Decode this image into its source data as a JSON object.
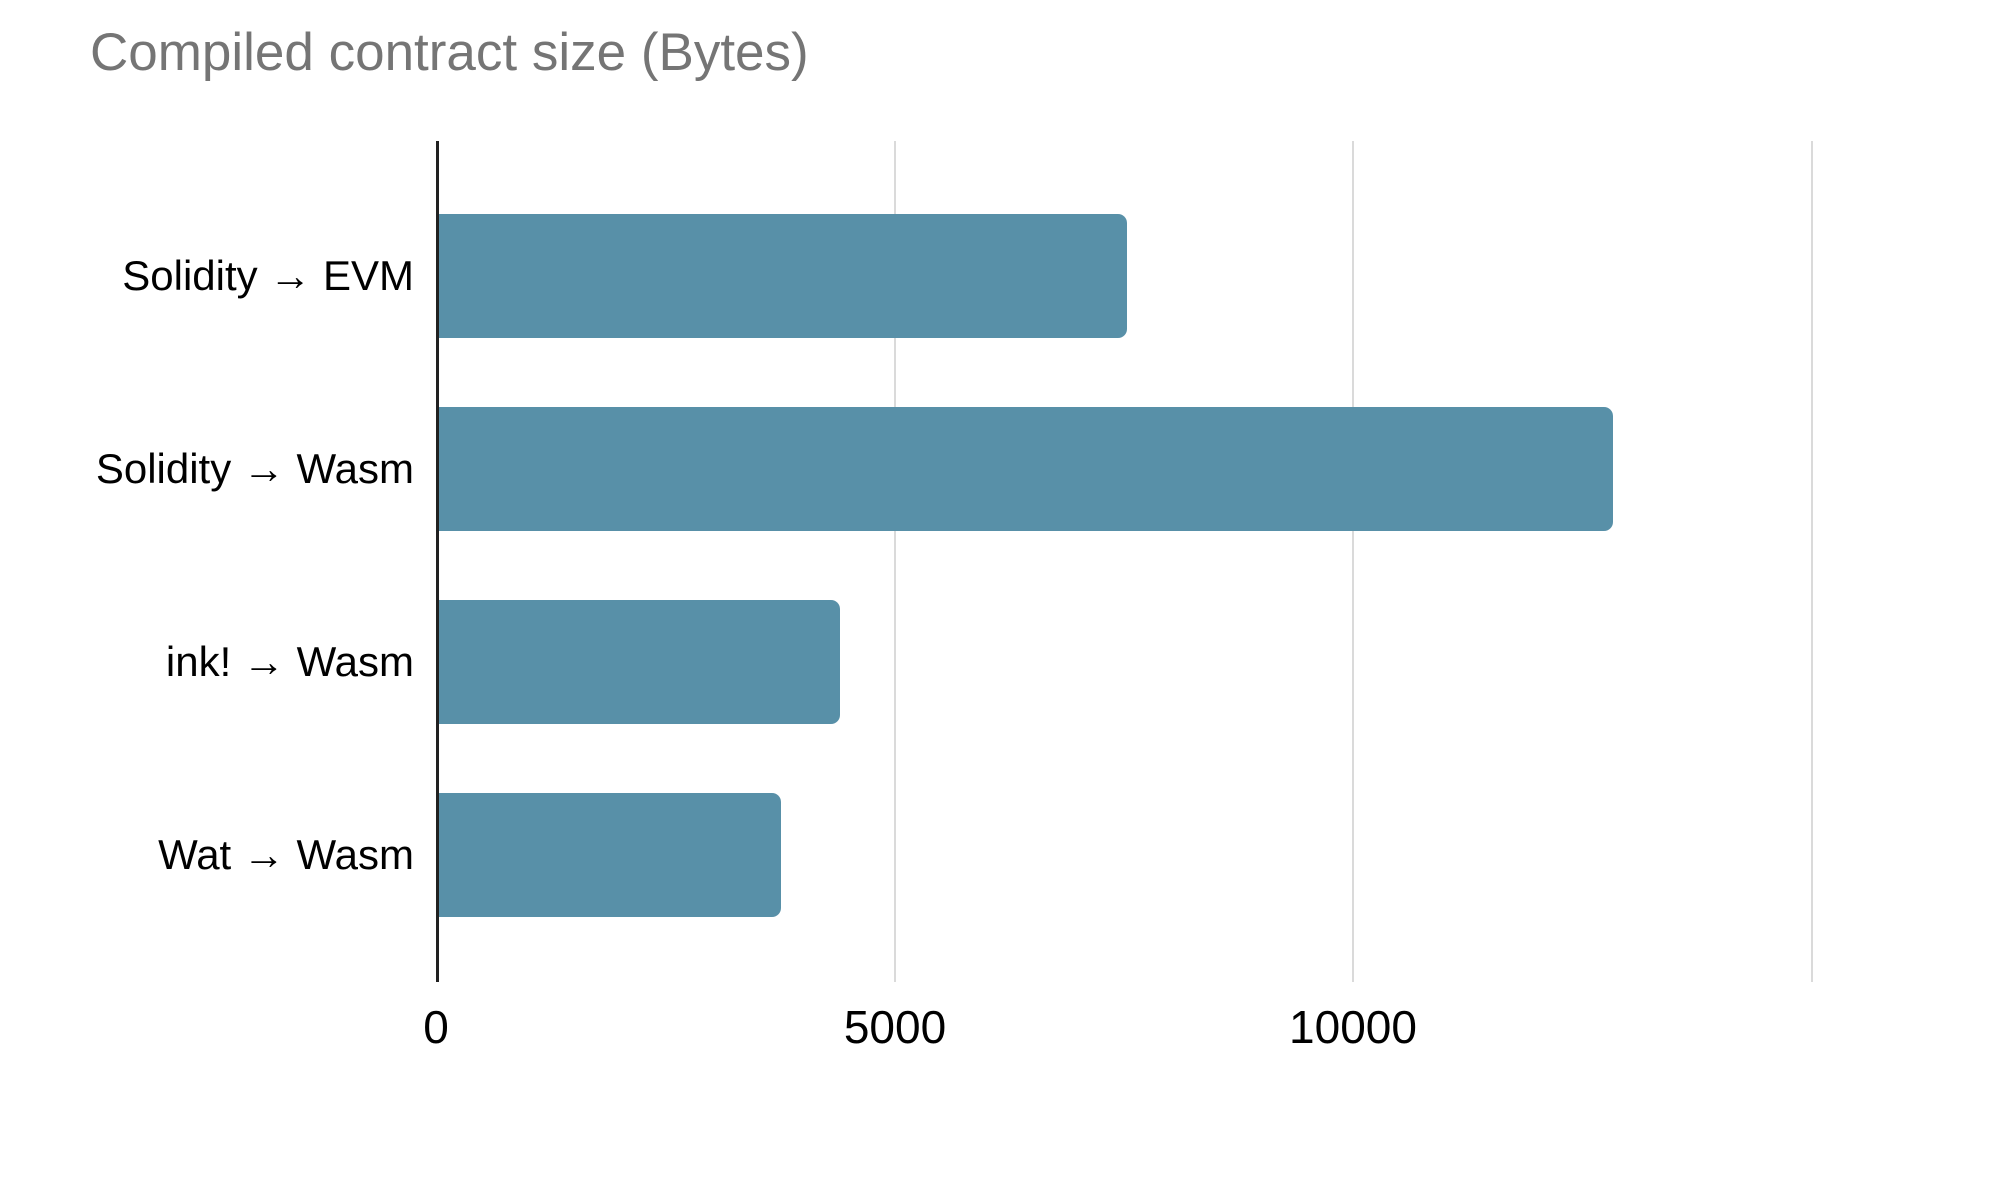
{
  "page": {
    "background": "#ffffff"
  },
  "chart_data": {
    "type": "bar",
    "orientation": "horizontal",
    "title": "Compiled contract size (Bytes)",
    "categories": [
      "Solidity → EVM",
      "Solidity → Wasm",
      "ink! → Wasm",
      "Wat → Wasm"
    ],
    "values": [
      7500,
      12800,
      4370,
      3730
    ],
    "xlabel": "",
    "ylabel": "",
    "xlim": [
      0,
      16500
    ],
    "x_ticks": [
      {
        "value": 0,
        "label": "0"
      },
      {
        "value": 5000,
        "label": "5000"
      },
      {
        "value": 10000,
        "label": "10000"
      }
    ],
    "x_gridlines": [
      5000,
      10000,
      15000
    ],
    "grid": true,
    "legend": "none",
    "colors": {
      "bar": "#5890a8",
      "title": "#757575",
      "gridline": "#dadada",
      "axis_line": "#212121",
      "text": "#000000",
      "background": "#ffffff"
    }
  }
}
